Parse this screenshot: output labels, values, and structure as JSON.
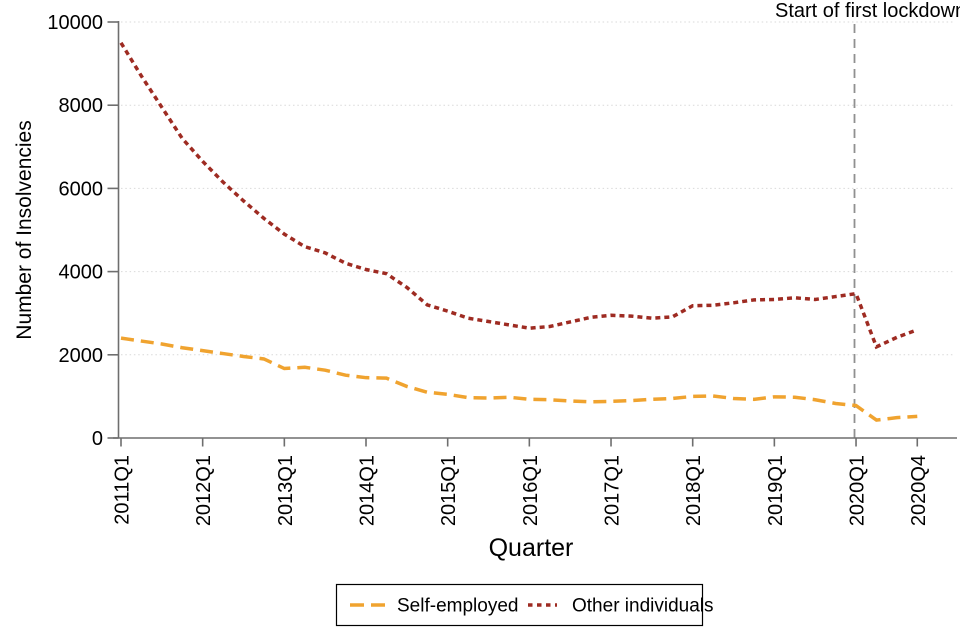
{
  "annotation": {
    "text": "Start of first lockdown"
  },
  "y_axis": {
    "title": "Number of Insolvencies",
    "ticks": [
      0,
      2000,
      4000,
      6000,
      8000,
      10000
    ],
    "min": 0,
    "max": 10000
  },
  "x_axis": {
    "title": "Quarter",
    "tick_indices": [
      0,
      4,
      8,
      12,
      16,
      20,
      24,
      28,
      32,
      36,
      39
    ],
    "tick_labels": [
      "2011Q1",
      "2012Q1",
      "2013Q1",
      "2014Q1",
      "2015Q1",
      "2016Q1",
      "2017Q1",
      "2018Q1",
      "2019Q1",
      "2020Q1",
      "2020Q4"
    ]
  },
  "legend": {
    "items": [
      {
        "label": "Self-employed",
        "color": "#F0A32F",
        "style": "dashed"
      },
      {
        "label": "Other individuals",
        "color": "#9E2B22",
        "style": "dotted"
      }
    ]
  },
  "colors": {
    "self_employed": "#F0A32F",
    "other_individuals": "#9E2B22",
    "axis": "#6E6E6E",
    "gridline": "#D9D9D9",
    "reference_line": "#909090",
    "background": "#FFFFFF"
  },
  "chart_data": {
    "type": "line",
    "x": [
      "2011Q1",
      "2011Q2",
      "2011Q3",
      "2011Q4",
      "2012Q1",
      "2012Q2",
      "2012Q3",
      "2012Q4",
      "2013Q1",
      "2013Q2",
      "2013Q3",
      "2013Q4",
      "2014Q1",
      "2014Q2",
      "2014Q3",
      "2014Q4",
      "2015Q1",
      "2015Q2",
      "2015Q3",
      "2015Q4",
      "2016Q1",
      "2016Q2",
      "2016Q3",
      "2016Q4",
      "2017Q1",
      "2017Q2",
      "2017Q3",
      "2017Q4",
      "2018Q1",
      "2018Q2",
      "2018Q3",
      "2018Q4",
      "2019Q1",
      "2019Q2",
      "2019Q3",
      "2019Q4",
      "2020Q1",
      "2020Q2",
      "2020Q3",
      "2020Q4"
    ],
    "series": [
      {
        "name": "Self-employed",
        "color": "#F0A32F",
        "line_style": "dashed",
        "values": [
          2400,
          2330,
          2260,
          2170,
          2100,
          2030,
          1960,
          1900,
          1670,
          1700,
          1630,
          1510,
          1450,
          1440,
          1240,
          1100,
          1050,
          970,
          960,
          980,
          930,
          920,
          890,
          870,
          880,
          900,
          930,
          950,
          1000,
          1010,
          950,
          930,
          990,
          980,
          920,
          830,
          780,
          430,
          490,
          520
        ]
      },
      {
        "name": "Other individuals",
        "color": "#9E2B22",
        "line_style": "dotted",
        "values": [
          9500,
          8700,
          7950,
          7200,
          6650,
          6150,
          5700,
          5280,
          4900,
          4600,
          4450,
          4200,
          4050,
          3950,
          3620,
          3200,
          3050,
          2880,
          2800,
          2720,
          2640,
          2680,
          2790,
          2900,
          2950,
          2930,
          2880,
          2910,
          3180,
          3190,
          3250,
          3320,
          3330,
          3370,
          3330,
          3400,
          3470,
          2190,
          2420,
          2600
        ]
      }
    ],
    "title": "",
    "xlabel": "Quarter",
    "ylabel": "Number of Insolvencies",
    "ylim": [
      0,
      10000
    ],
    "grid": "horizontal-dotted",
    "legend_position": "bottom",
    "reference_line": {
      "x": "2020Q1",
      "x_index": 36,
      "label": "Start of first lockdown"
    }
  }
}
